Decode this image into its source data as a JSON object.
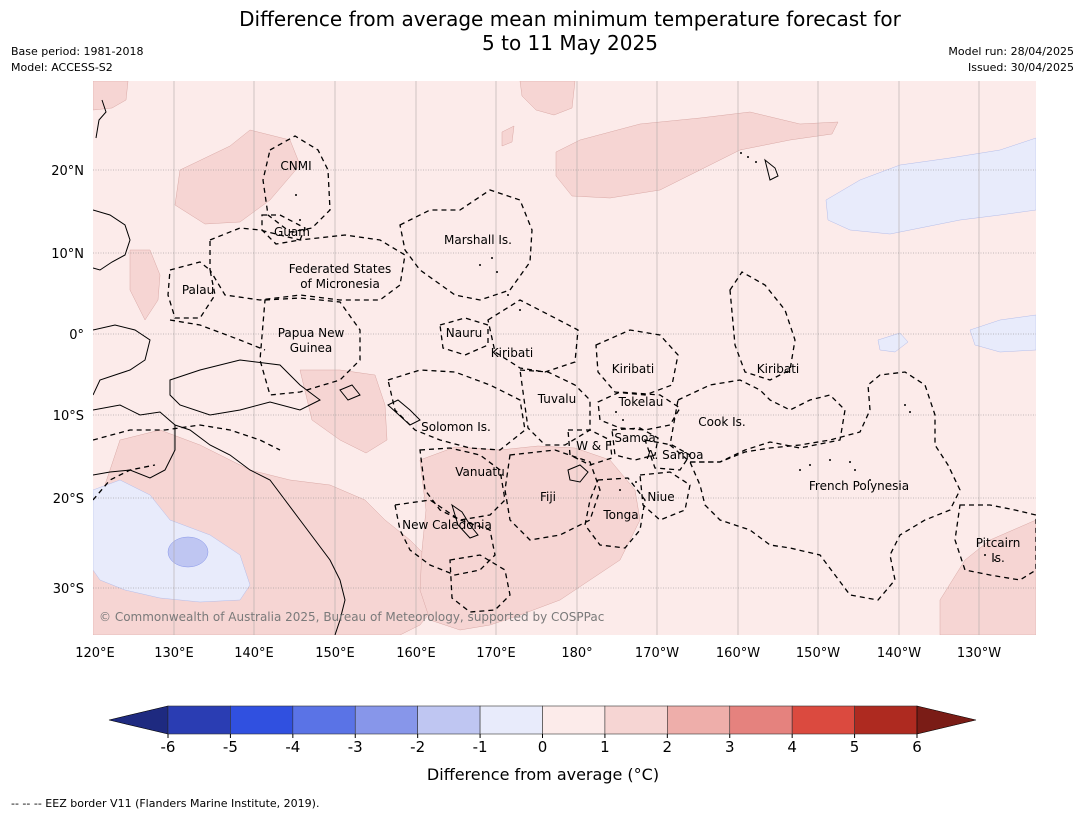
{
  "title_line1": "Difference from average mean minimum temperature forecast for",
  "title_line2": "5 to 11 May 2025",
  "base_period": "Base period: 1981-2018",
  "model": "Model: ACCESS-S2",
  "model_run": "Model run: 28/04/2025",
  "issued": "Issued: 30/04/2025",
  "copyright": "© Commonwealth of Australia 2025, Bureau of Meteorology, supported by COSPPac",
  "lat_labels": [
    "20°N",
    "10°N",
    "0°",
    "10°S",
    "20°S",
    "30°S"
  ],
  "lon_labels": [
    "120°E",
    "130°E",
    "140°E",
    "150°E",
    "160°E",
    "170°E",
    "180°",
    "170°W",
    "160°W",
    "150°W",
    "140°W",
    "130°W"
  ],
  "regions": {
    "cnmi": "CNMI",
    "guam": "Guam",
    "marshall": "Marshall Is.",
    "fsm_line1": "Federated States",
    "fsm_line2": "of Micronesia",
    "palau": "Palau",
    "png_line1": "Papua New",
    "png_line2": "Guinea",
    "nauru": "Nauru",
    "kiribati_west": "Kiribati",
    "kiribati_central": "Kiribati",
    "kiribati_east": "Kiribati",
    "tuvalu": "Tuvalu",
    "tokelau": "Tokelau",
    "cook": "Cook Is.",
    "solomon": "Solomon Is.",
    "wallis": "W & F",
    "samoa": "Samoa",
    "asamoa": "A. Samoa",
    "vanuatu": "Vanuatu",
    "fiji": "Fiji",
    "niue": "Niue",
    "tonga": "Tonga",
    "french_polynesia": "French Polynesia",
    "new_caledonia": "New Caledonia",
    "pitcairn_line1": "Pitcairn",
    "pitcairn_line2": "Is."
  },
  "colorbar": {
    "title": "Difference from average (°C)",
    "ticks": [
      "-6",
      "-5",
      "-4",
      "-3",
      "-2",
      "-1",
      "0",
      "1",
      "2",
      "3",
      "4",
      "5",
      "6"
    ],
    "colors": [
      "#2a3db3",
      "#3050e0",
      "#5a73e6",
      "#8796ea",
      "#bfc6f2",
      "#e8ebfb",
      "#fcebea",
      "#f6d5d3",
      "#eeaeaa",
      "#e5827e",
      "#db4a3f",
      "#ae2a20"
    ],
    "under_color": "#1e2a80",
    "over_color": "#7a1c16"
  },
  "footnote": "--  --  -- EEZ border V11 (Flanders Marine Institute, 2019)."
}
